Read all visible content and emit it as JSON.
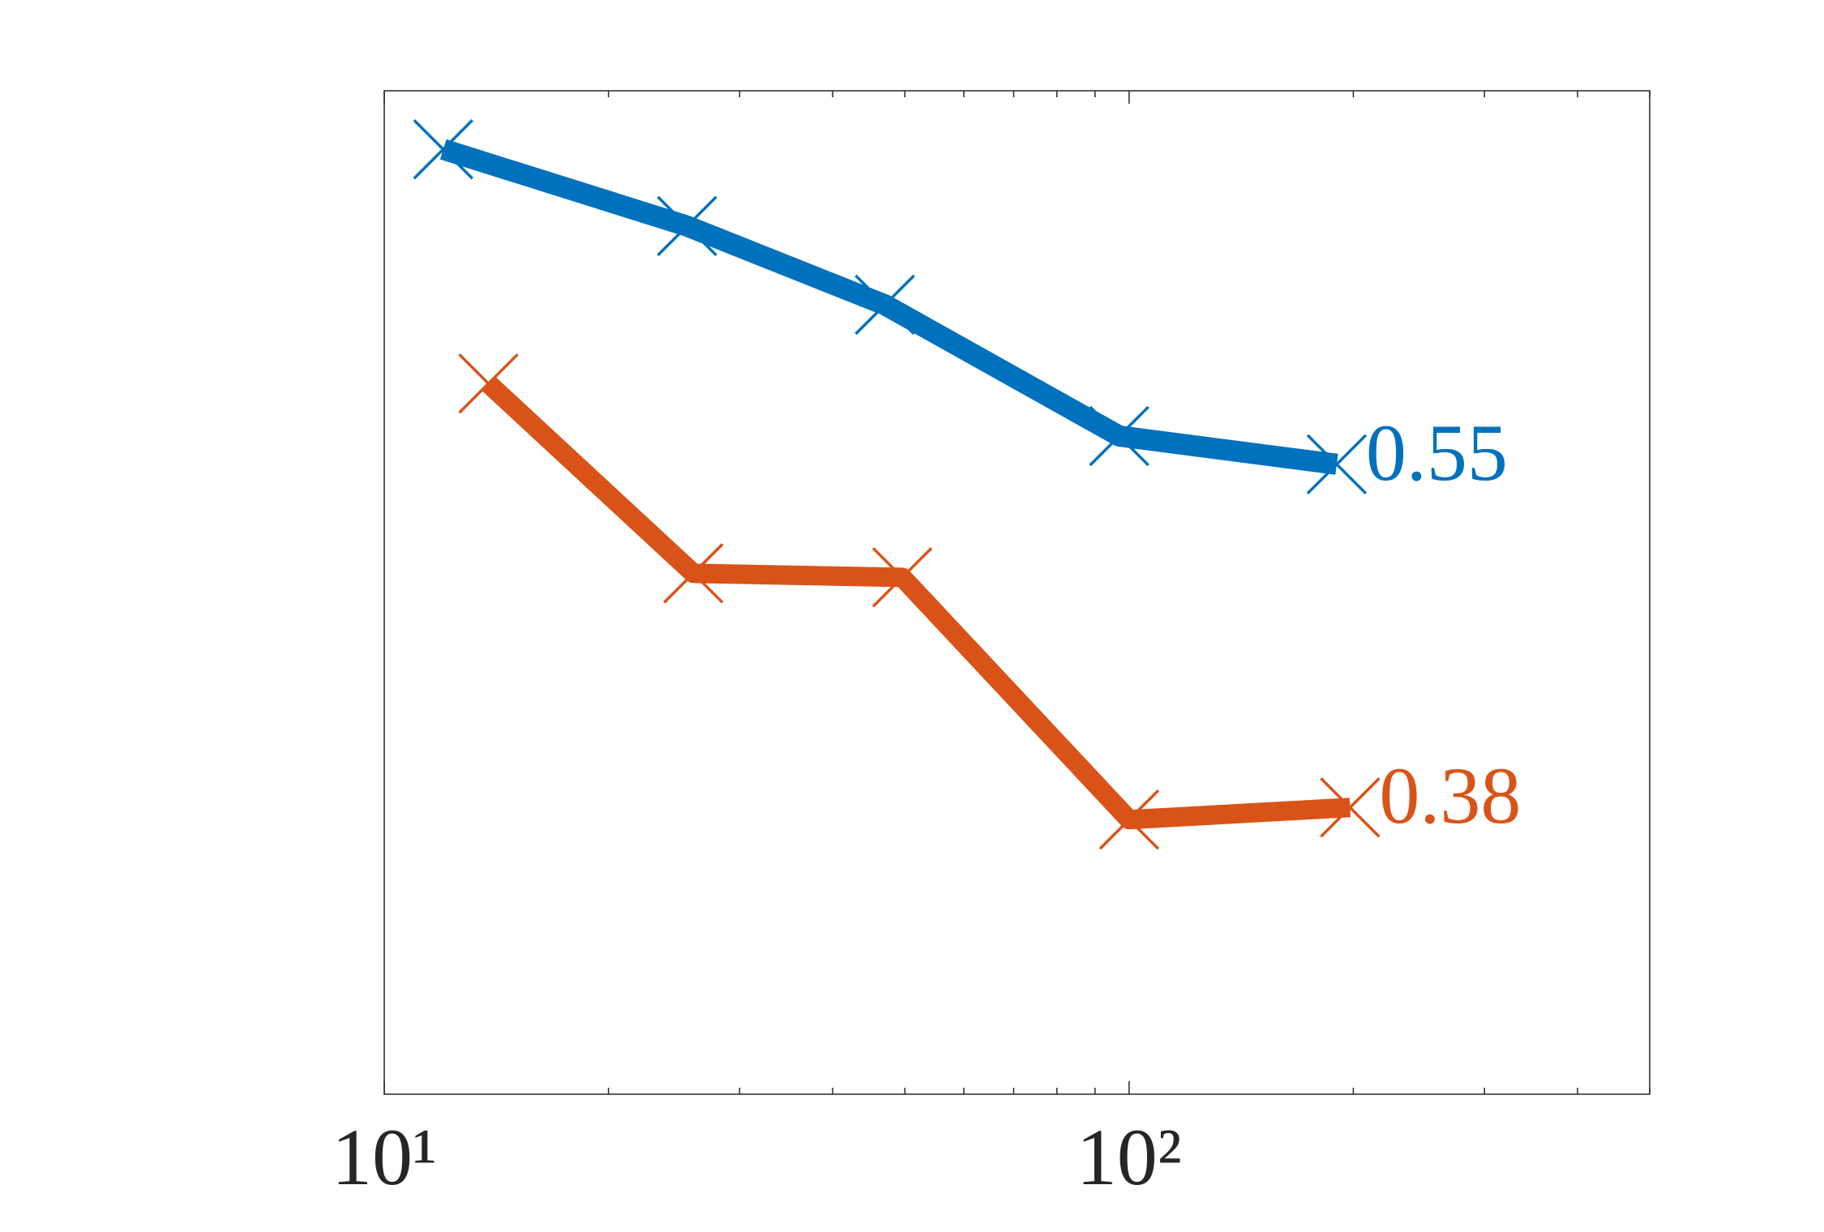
{
  "chart_data": {
    "type": "line",
    "xscale": "log",
    "xlim": [
      10,
      500
    ],
    "xticks": [
      {
        "value": 10,
        "label": "10¹"
      },
      {
        "value": 100,
        "label": "10²"
      }
    ],
    "xminorticks": [
      20,
      30,
      40,
      50,
      60,
      70,
      80,
      90,
      200,
      300,
      400,
      500
    ],
    "ylim": [
      0.238,
      0.735
    ],
    "series": [
      {
        "color": "#0072bd",
        "x": [
          12,
          25.5,
          47,
          97,
          190
        ],
        "values": [
          0.706,
          0.668,
          0.629,
          0.564,
          0.55
        ]
      },
      {
        "color": "#d95319",
        "x": [
          13.8,
          26,
          49.6,
          100,
          198
        ],
        "values": [
          0.59,
          0.496,
          0.494,
          0.374,
          0.38
        ]
      }
    ]
  }
}
